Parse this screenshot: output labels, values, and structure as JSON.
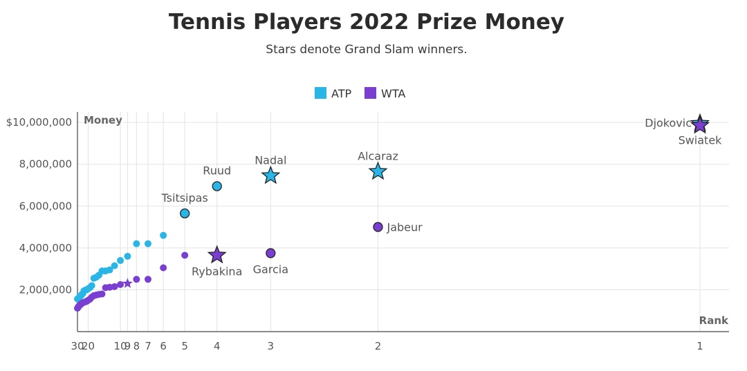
{
  "title": "Tennis Players 2022 Prize Money",
  "subtitle": "Stars denote Grand Slam winners.",
  "chart_data": {
    "type": "scatter",
    "x_scale": "reciprocal",
    "xlabel": "Rank",
    "ylabel": "Money",
    "xlim": [
      30,
      1
    ],
    "ylim": [
      0,
      10500000
    ],
    "x_ticks": [
      30,
      20,
      10,
      9,
      8,
      7,
      6,
      5,
      4,
      3,
      2,
      1
    ],
    "y_ticks": [
      2000000,
      4000000,
      6000000,
      8000000,
      10000000
    ],
    "y_tick_labels": [
      "2,000,000",
      "4,000,000",
      "6,000,000",
      "8,000,000",
      "$10,000,000"
    ],
    "grid": true,
    "legend_position": "top-center",
    "colors": {
      "ATP": "#29b6e6",
      "WTA": "#7a3fd1"
    },
    "series": [
      {
        "name": "ATP",
        "points": [
          {
            "rank": 1,
            "money": 9950000,
            "label": "Djokovic",
            "grand_slam": true
          },
          {
            "rank": 2,
            "money": 7650000,
            "label": "Alcaraz",
            "grand_slam": true
          },
          {
            "rank": 3,
            "money": 7450000,
            "label": "Nadal",
            "grand_slam": true
          },
          {
            "rank": 4,
            "money": 6950000,
            "label": "Ruud",
            "grand_slam": false
          },
          {
            "rank": 5,
            "money": 5650000,
            "label": "Tsitsipas",
            "grand_slam": false
          },
          {
            "rank": 6,
            "money": 4600000
          },
          {
            "rank": 7,
            "money": 4200000
          },
          {
            "rank": 8,
            "money": 4200000
          },
          {
            "rank": 9,
            "money": 3600000
          },
          {
            "rank": 10,
            "money": 3400000
          },
          {
            "rank": 11,
            "money": 3150000
          },
          {
            "rank": 12,
            "money": 2950000
          },
          {
            "rank": 13,
            "money": 2900000
          },
          {
            "rank": 14,
            "money": 2900000
          },
          {
            "rank": 15,
            "money": 2700000
          },
          {
            "rank": 16,
            "money": 2600000
          },
          {
            "rank": 17,
            "money": 2550000
          },
          {
            "rank": 18,
            "money": 2200000
          },
          {
            "rank": 19,
            "money": 2100000
          },
          {
            "rank": 20,
            "money": 2050000
          },
          {
            "rank": 21,
            "money": 2000000
          },
          {
            "rank": 22,
            "money": 1980000
          },
          {
            "rank": 23,
            "money": 1950000
          },
          {
            "rank": 24,
            "money": 1820000
          },
          {
            "rank": 25,
            "money": 1780000
          },
          {
            "rank": 26,
            "money": 1700000
          },
          {
            "rank": 27,
            "money": 1680000
          },
          {
            "rank": 28,
            "money": 1620000
          },
          {
            "rank": 29,
            "money": 1580000
          },
          {
            "rank": 30,
            "money": 1560000
          }
        ]
      },
      {
        "name": "WTA",
        "points": [
          {
            "rank": 1,
            "money": 9850000,
            "label": "Swiatek",
            "grand_slam": true
          },
          {
            "rank": 2,
            "money": 5000000,
            "label": "Jabeur",
            "grand_slam": false
          },
          {
            "rank": 3,
            "money": 3750000,
            "label": "Garcia",
            "grand_slam": false
          },
          {
            "rank": 4,
            "money": 3650000,
            "label": "Rybakina",
            "grand_slam": true
          },
          {
            "rank": 5,
            "money": 3650000
          },
          {
            "rank": 6,
            "money": 3050000
          },
          {
            "rank": 7,
            "money": 2500000
          },
          {
            "rank": 8,
            "money": 2500000
          },
          {
            "rank": 9,
            "money": 2300000,
            "grand_slam": true
          },
          {
            "rank": 10,
            "money": 2250000
          },
          {
            "rank": 11,
            "money": 2150000
          },
          {
            "rank": 12,
            "money": 2120000
          },
          {
            "rank": 13,
            "money": 2100000
          },
          {
            "rank": 14,
            "money": 1800000
          },
          {
            "rank": 15,
            "money": 1780000
          },
          {
            "rank": 16,
            "money": 1750000
          },
          {
            "rank": 17,
            "money": 1720000
          },
          {
            "rank": 18,
            "money": 1650000
          },
          {
            "rank": 19,
            "money": 1550000
          },
          {
            "rank": 20,
            "money": 1500000
          },
          {
            "rank": 21,
            "money": 1450000
          },
          {
            "rank": 22,
            "money": 1420000
          },
          {
            "rank": 23,
            "money": 1400000
          },
          {
            "rank": 24,
            "money": 1380000
          },
          {
            "rank": 25,
            "money": 1350000
          },
          {
            "rank": 26,
            "money": 1300000
          },
          {
            "rank": 27,
            "money": 1280000
          },
          {
            "rank": 28,
            "money": 1220000
          },
          {
            "rank": 29,
            "money": 1180000
          },
          {
            "rank": 30,
            "money": 1120000
          }
        ]
      }
    ]
  }
}
